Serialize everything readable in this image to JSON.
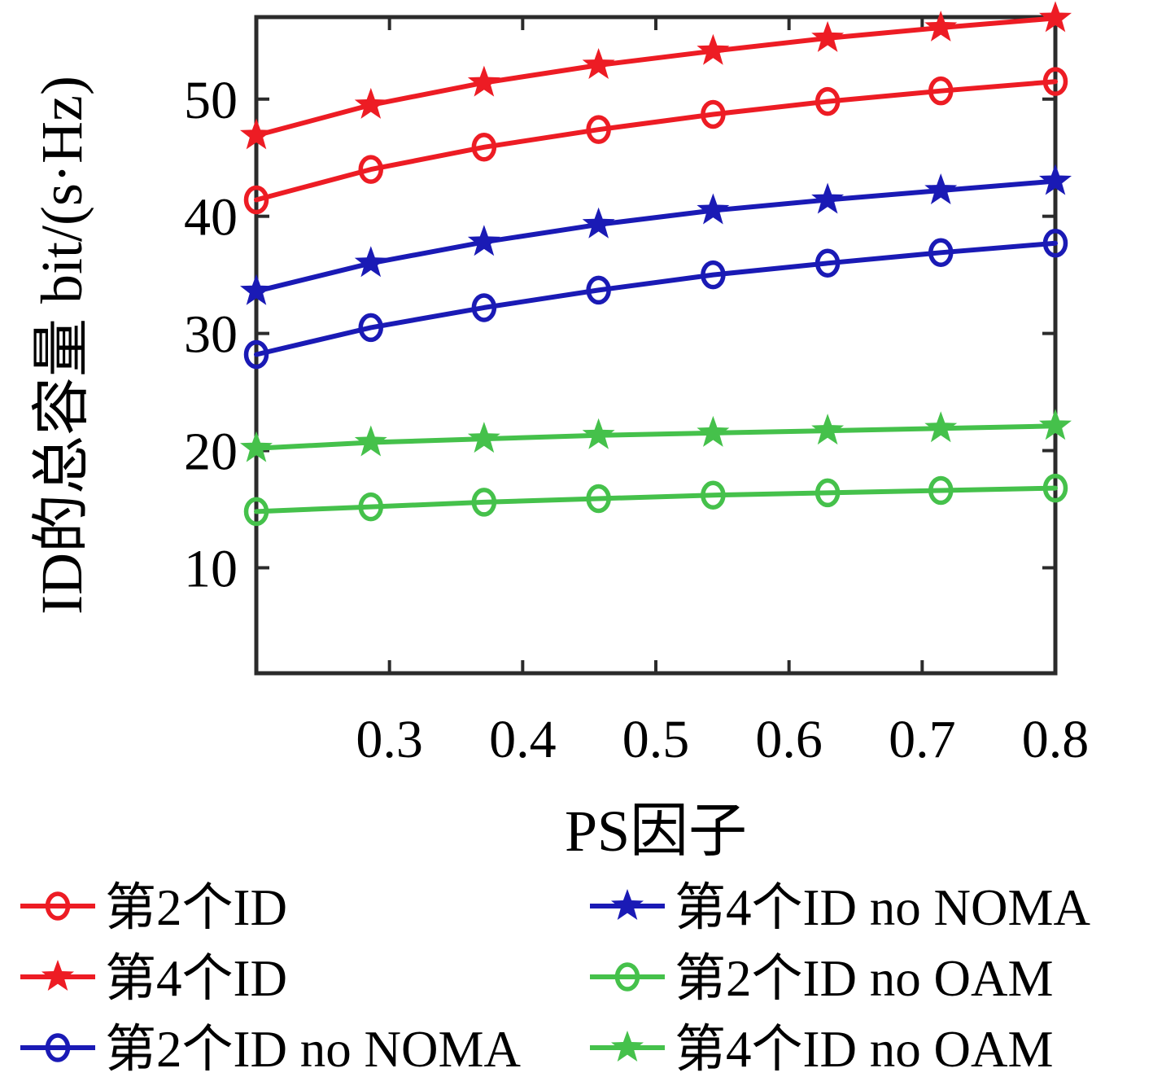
{
  "figure": {
    "background": "#ffffff",
    "axis_color": "#2b2b2b",
    "text_color": "#000000"
  },
  "chart_data": {
    "type": "line",
    "title": "",
    "xlabel": "PS因子",
    "ylabel": "ID的总容量 bit/(s·Hz)",
    "xlim": [
      0.2,
      0.8
    ],
    "ylim": [
      1,
      57
    ],
    "xticks": [
      0.3,
      0.4,
      0.5,
      0.6,
      0.7,
      0.8
    ],
    "yticks": [
      10,
      20,
      30,
      40,
      50
    ],
    "grid": false,
    "legend_position": "below-two-columns",
    "x": [
      0.2,
      0.286,
      0.371,
      0.457,
      0.543,
      0.629,
      0.714,
      0.8
    ],
    "series": [
      {
        "label": "第2个ID",
        "color": "#ed1c24",
        "marker": "circle",
        "values": [
          41.4,
          44.0,
          45.9,
          47.4,
          48.7,
          49.8,
          50.7,
          51.5
        ]
      },
      {
        "label": "第4个ID",
        "color": "#ed1c24",
        "marker": "star",
        "values": [
          46.9,
          49.5,
          51.4,
          52.9,
          54.1,
          55.2,
          56.1,
          56.9
        ]
      },
      {
        "label": "第2个ID no NOMA",
        "color": "#1a1ab5",
        "marker": "circle",
        "values": [
          28.2,
          30.5,
          32.2,
          33.7,
          35.0,
          36.0,
          36.9,
          37.7
        ]
      },
      {
        "label": "第4个ID no NOMA",
        "color": "#1a1ab5",
        "marker": "star",
        "values": [
          33.6,
          36.0,
          37.8,
          39.3,
          40.5,
          41.4,
          42.2,
          43.0
        ]
      },
      {
        "label": "第2个ID no OAM",
        "color": "#45c14b",
        "marker": "circle",
        "values": [
          14.8,
          15.2,
          15.6,
          15.9,
          16.2,
          16.4,
          16.6,
          16.8
        ]
      },
      {
        "label": "第4个ID no OAM",
        "color": "#45c14b",
        "marker": "star",
        "values": [
          20.2,
          20.7,
          21.0,
          21.3,
          21.5,
          21.7,
          21.9,
          22.1
        ]
      }
    ],
    "legend_order_columns": [
      [
        0,
        1,
        2
      ],
      [
        3,
        4,
        5
      ]
    ]
  }
}
